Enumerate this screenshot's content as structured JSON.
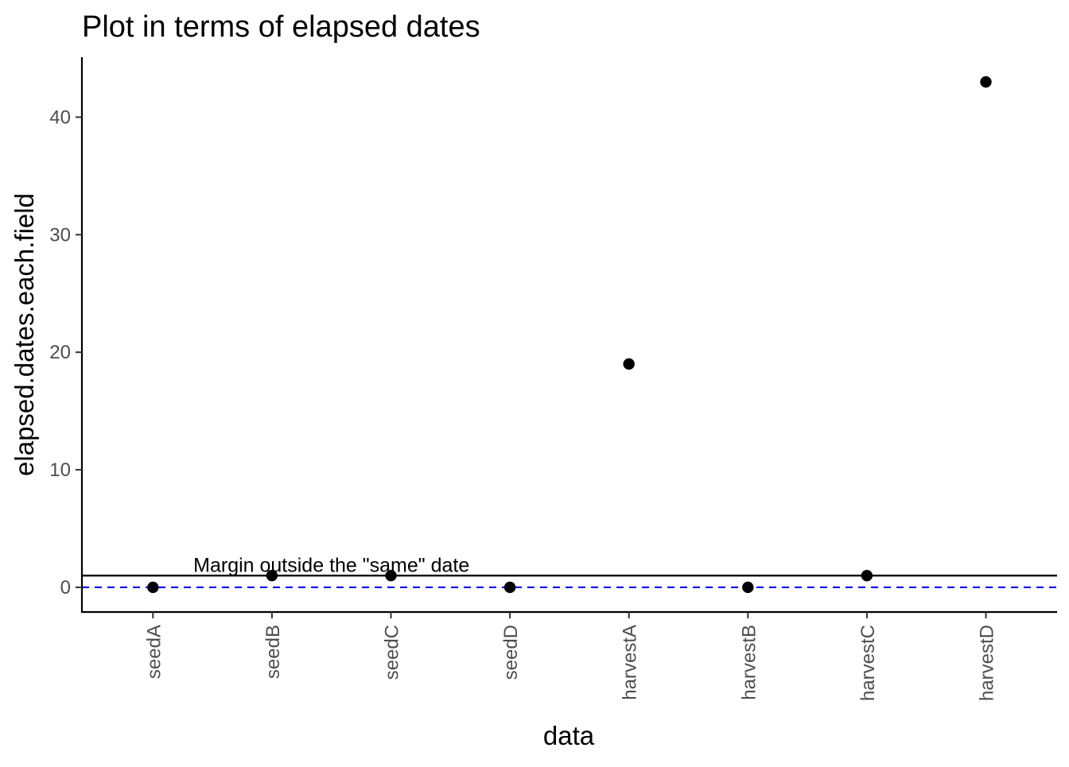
{
  "chart_data": {
    "type": "scatter",
    "title": "Plot in terms of elapsed dates",
    "xlabel": "data",
    "ylabel": "elapsed.dates.each.field",
    "categories": [
      "seedA",
      "seedB",
      "seedC",
      "seedD",
      "harvestA",
      "harvestB",
      "harvestC",
      "harvestD"
    ],
    "values": [
      0,
      1,
      1,
      0,
      19,
      0,
      1,
      43
    ],
    "ylim": [
      -2.1,
      45.1
    ],
    "yticks": [
      0,
      10,
      20,
      30,
      40
    ],
    "grid": false,
    "reference_lines": [
      {
        "value": 1,
        "style": "solid",
        "color": "#000000"
      },
      {
        "value": 0,
        "style": "dashed",
        "color": "#0000ff"
      }
    ],
    "annotations": [
      {
        "text": "Margin outside the \"same\" date",
        "x_category": "seedB",
        "x_offset_categories": 1,
        "y": 2
      }
    ],
    "point_color": "#000000"
  }
}
